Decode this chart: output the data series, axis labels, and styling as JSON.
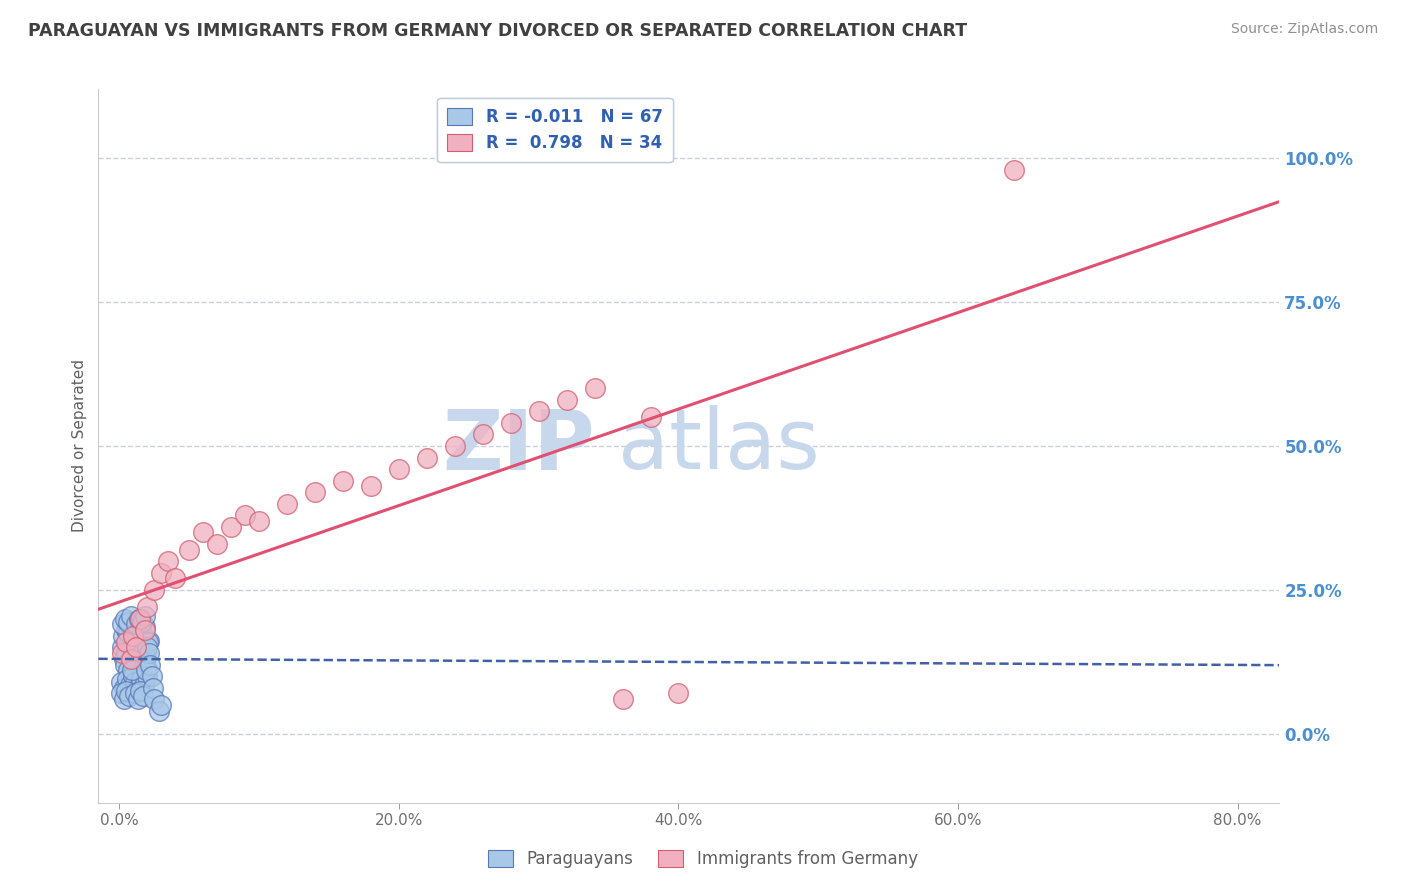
{
  "title": "PARAGUAYAN VS IMMIGRANTS FROM GERMANY DIVORCED OR SEPARATED CORRELATION CHART",
  "source": "Source: ZipAtlas.com",
  "ylabel": "Divorced or Separated",
  "xlabel_ticks": [
    "0.0%",
    "20.0%",
    "40.0%",
    "60.0%",
    "80.0%"
  ],
  "xlabel_vals": [
    0.0,
    20.0,
    40.0,
    60.0,
    80.0
  ],
  "ylabel_ticks": [
    "0.0%",
    "25.0%",
    "50.0%",
    "75.0%",
    "100.0%"
  ],
  "ylabel_vals": [
    0.0,
    25.0,
    50.0,
    75.0,
    100.0
  ],
  "xlim": [
    -1.5,
    83
  ],
  "ylim": [
    -12,
    112
  ],
  "legend_r1": "R = -0.011",
  "legend_n1": "N = 67",
  "legend_r2": "R =  0.798",
  "legend_n2": "N = 34",
  "blue_color": "#A8C8E8",
  "pink_color": "#F0B0C0",
  "blue_edge_color": "#5878B8",
  "pink_edge_color": "#D06070",
  "blue_line_color": "#4060A8",
  "pink_line_color": "#E05070",
  "blue_scatter_x": [
    0.2,
    0.3,
    0.4,
    0.5,
    0.6,
    0.7,
    0.8,
    0.9,
    1.0,
    1.1,
    1.2,
    1.3,
    1.4,
    1.5,
    1.6,
    1.7,
    1.8,
    1.9,
    2.0,
    2.1,
    0.15,
    0.25,
    0.35,
    0.45,
    0.55,
    0.65,
    0.75,
    0.85,
    0.95,
    1.05,
    1.15,
    1.25,
    1.35,
    1.45,
    1.55,
    1.65,
    1.75,
    1.85,
    1.95,
    2.05,
    0.1,
    0.2,
    0.3,
    0.4,
    0.5,
    0.6,
    0.7,
    0.8,
    0.9,
    1.0,
    1.1,
    1.2,
    1.3,
    1.4,
    1.5,
    1.6,
    1.7,
    1.8,
    1.9,
    2.0,
    2.1,
    2.2,
    2.3,
    2.4,
    2.5,
    2.8,
    3.0
  ],
  "blue_scatter_y": [
    15.0,
    13.0,
    12.0,
    14.0,
    11.0,
    16.0,
    10.0,
    15.5,
    13.5,
    12.5,
    14.5,
    11.5,
    16.5,
    10.5,
    15.2,
    13.2,
    12.2,
    14.2,
    11.2,
    16.2,
    9.0,
    17.0,
    8.0,
    18.0,
    9.5,
    17.5,
    8.5,
    18.5,
    10.0,
    16.0,
    9.0,
    17.0,
    8.0,
    18.0,
    9.5,
    17.5,
    8.5,
    18.5,
    10.0,
    16.0,
    7.0,
    19.0,
    6.0,
    20.0,
    7.5,
    19.5,
    6.5,
    20.5,
    11.0,
    15.0,
    7.0,
    19.0,
    6.0,
    20.0,
    7.5,
    19.5,
    6.5,
    20.5,
    11.0,
    15.0,
    14.0,
    12.0,
    10.0,
    8.0,
    6.0,
    4.0,
    5.0
  ],
  "pink_scatter_x": [
    0.2,
    0.5,
    0.8,
    1.0,
    1.2,
    1.5,
    1.8,
    2.0,
    2.5,
    3.0,
    3.5,
    4.0,
    5.0,
    6.0,
    7.0,
    8.0,
    9.0,
    10.0,
    12.0,
    14.0,
    16.0,
    18.0,
    20.0,
    22.0,
    24.0,
    26.0,
    28.0,
    30.0,
    32.0,
    34.0,
    36.0,
    40.0,
    64.0,
    38.0
  ],
  "pink_scatter_y": [
    14.0,
    16.0,
    13.0,
    17.0,
    15.0,
    20.0,
    18.0,
    22.0,
    25.0,
    28.0,
    30.0,
    27.0,
    32.0,
    35.0,
    33.0,
    36.0,
    38.0,
    37.0,
    40.0,
    42.0,
    44.0,
    43.0,
    46.0,
    48.0,
    50.0,
    52.0,
    54.0,
    56.0,
    58.0,
    60.0,
    6.0,
    7.0,
    98.0,
    55.0
  ],
  "watermark": "ZIPatlas",
  "watermark_color": "#C8D8EC",
  "title_color": "#404040",
  "source_color": "#909090",
  "axis_label_color": "#606060",
  "tick_color": "#707070",
  "grid_color": "#C8D0DC",
  "right_axis_color": "#4A90D0"
}
